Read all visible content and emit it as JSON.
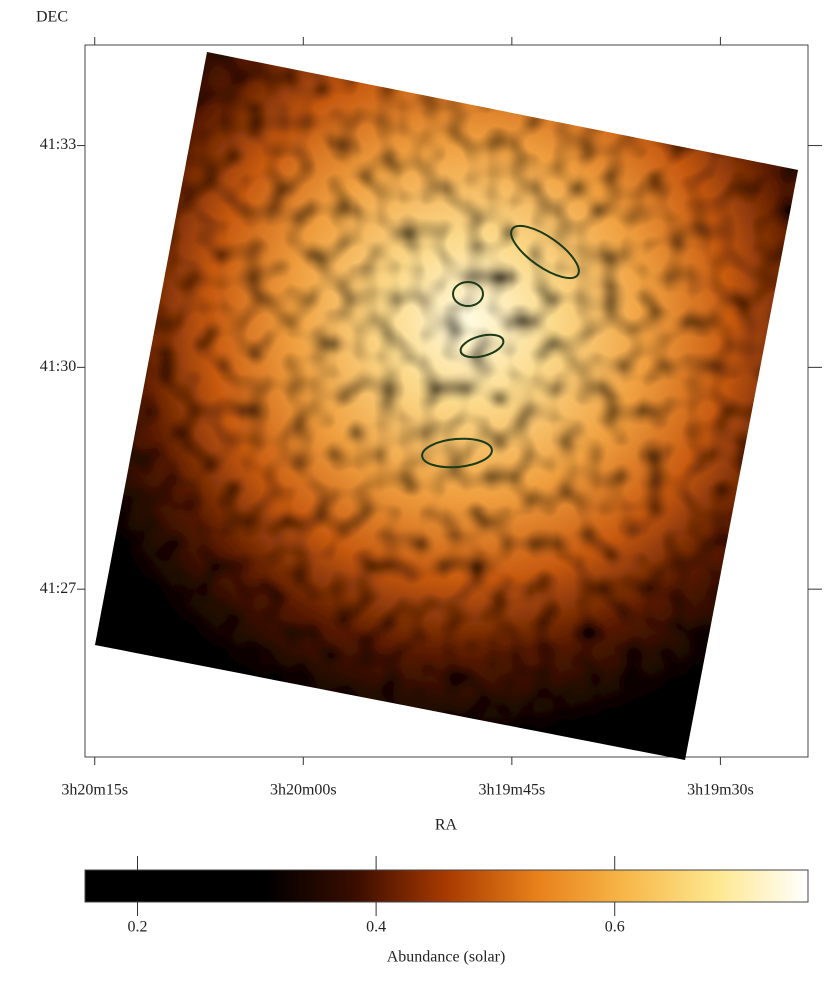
{
  "chart_data": {
    "type": "image",
    "xlabel": "RA",
    "ylabel": "DEC",
    "xlim": [
      12015.7,
      11963.7
    ],
    "xticks": [
      {
        "value": 12015,
        "label": "3h20m15s"
      },
      {
        "value": 12000,
        "label": "3h20m00s"
      },
      {
        "value": 11985,
        "label": "3h19m45s"
      },
      {
        "value": 11970,
        "label": "3h19m30s"
      }
    ],
    "ylim": [
      2484.73,
      2494.36
    ],
    "yticks": [
      {
        "value": 2487,
        "label": "41:27"
      },
      {
        "value": 2490,
        "label": "41:30"
      },
      {
        "value": 2493,
        "label": "41:33"
      }
    ],
    "colorbar": {
      "label": "Abundance (solar)",
      "clim": [
        0.156,
        0.762
      ],
      "ticks": [
        0.2,
        0.4,
        0.6
      ],
      "colormap": [
        "#000000",
        "#000000",
        "#000000",
        "#3a0d00",
        "#a83a00",
        "#e8801a",
        "#f7b84a",
        "#fde890",
        "#ffffff"
      ]
    }
  }
}
